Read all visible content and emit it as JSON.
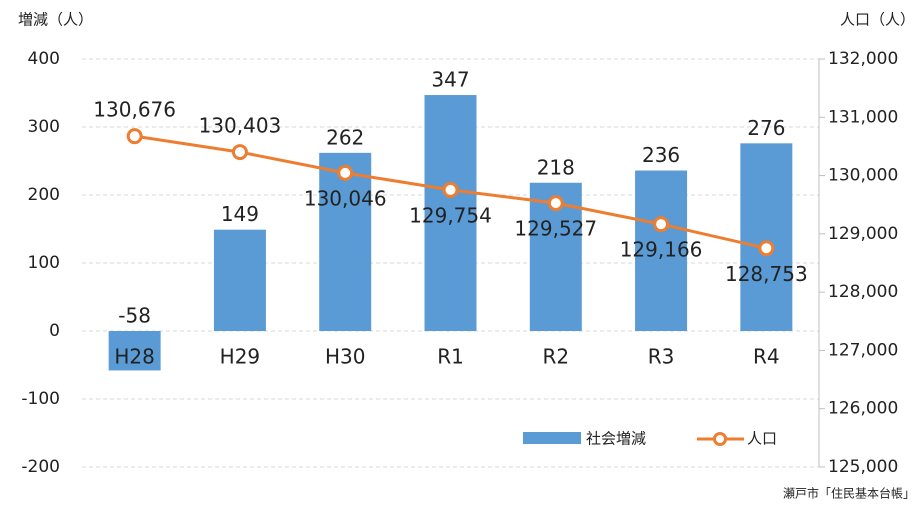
{
  "chart_data": {
    "type": "bar-line",
    "y_label": "増減（人）",
    "y2_label": "人口（人）",
    "source": "瀬戸市「住民基本台帳」",
    "categories": [
      "H28",
      "H29",
      "H30",
      "R1",
      "R2",
      "R3",
      "R4"
    ],
    "series": [
      {
        "name": "社会増減",
        "type": "bar",
        "color": "#5b9bd5",
        "values": [
          -58,
          149,
          262,
          347,
          218,
          236,
          276
        ]
      },
      {
        "name": "人口",
        "type": "line",
        "axis": "y2",
        "color": "#ed7d31",
        "values": [
          130676,
          130403,
          130046,
          129754,
          129527,
          129166,
          128753
        ],
        "value_labels": [
          "130,676",
          "130,403",
          "130,046",
          "129,754",
          "129,527",
          "129,166",
          "128,753"
        ]
      }
    ],
    "ylim": [
      -200,
      400
    ],
    "yticks": [
      -200,
      -100,
      0,
      100,
      200,
      300,
      400
    ],
    "y2lim": [
      125000,
      132000
    ],
    "y2ticks": [
      {
        "value": 125000,
        "label": "125,000"
      },
      {
        "value": 126000,
        "label": "126,000"
      },
      {
        "value": 127000,
        "label": "127,000"
      },
      {
        "value": 128000,
        "label": "128,000"
      },
      {
        "value": 129000,
        "label": "129,000"
      },
      {
        "value": 130000,
        "label": "130,000"
      },
      {
        "value": 131000,
        "label": "131,000"
      },
      {
        "value": 132000,
        "label": "132,000"
      }
    ],
    "grid": true,
    "legend": "bottom-right"
  }
}
